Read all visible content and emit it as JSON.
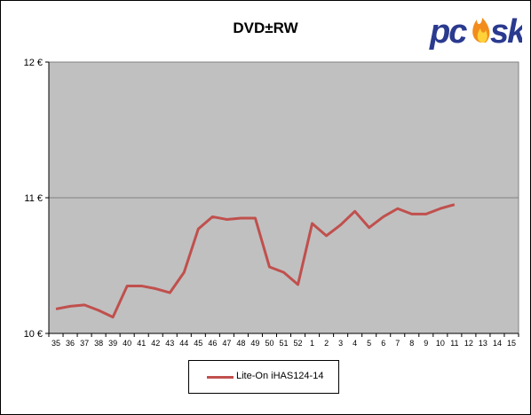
{
  "chart_data": {
    "type": "line",
    "title": "DVD±RW",
    "xlabel": "",
    "ylabel": "",
    "ylim": [
      10,
      12
    ],
    "yticks": [
      "10 €",
      "11 €",
      "12 €"
    ],
    "ytick_values": [
      10,
      11,
      12
    ],
    "categories": [
      "35",
      "36",
      "37",
      "38",
      "39",
      "40",
      "41",
      "42",
      "43",
      "44",
      "45",
      "46",
      "47",
      "48",
      "49",
      "50",
      "51",
      "52",
      "1",
      "2",
      "3",
      "4",
      "5",
      "6",
      "7",
      "8",
      "9",
      "10",
      "11",
      "12",
      "13",
      "14",
      "15"
    ],
    "series": [
      {
        "name": "Lite-On  iHAS124-14",
        "color": "#c0504d",
        "values": [
          10.18,
          10.2,
          10.21,
          10.17,
          10.12,
          10.35,
          10.35,
          10.33,
          10.3,
          10.45,
          10.77,
          10.86,
          10.84,
          10.85,
          10.85,
          10.49,
          10.45,
          10.36,
          10.81,
          10.72,
          10.8,
          10.9,
          10.78,
          10.86,
          10.92,
          10.88,
          10.88,
          10.92,
          10.95,
          null,
          null,
          null,
          null
        ]
      }
    ],
    "grid": "horizontal major gridlines",
    "legend_position": "bottom",
    "plot_background": "#c0c0c0"
  },
  "logo": {
    "text": "pcsk",
    "color": "#2a3a8f",
    "accent": "#f28c1c"
  }
}
